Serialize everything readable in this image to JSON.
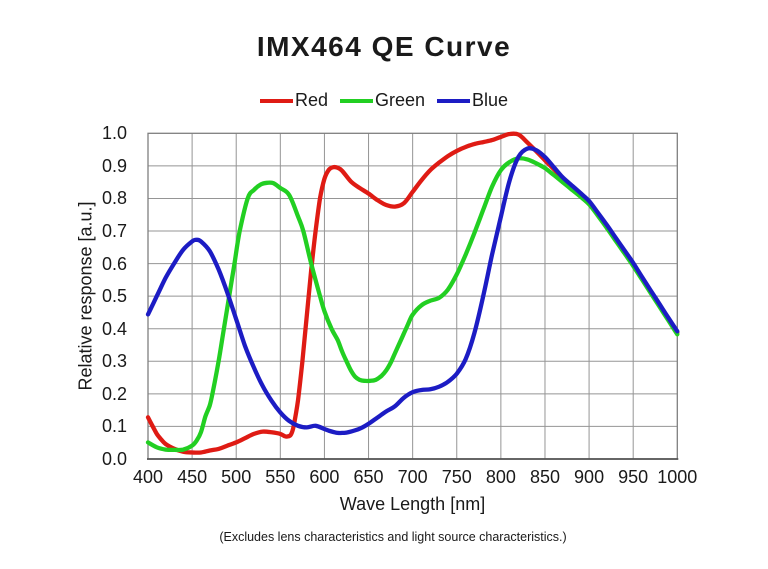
{
  "title": "IMX464 QE Curve",
  "x_axis_title": "Wave Length [nm]",
  "y_axis_title": "Relative response [a.u.]",
  "footnote": "(Excludes lens characteristics and light source characteristics.)",
  "colors": {
    "red": "#df1b14",
    "green": "#22cf22",
    "blue": "#1c1cc4",
    "grid": "#959595",
    "frame": "#7f7f7f",
    "axis": "#555555",
    "text": "#1a1a1a"
  },
  "chart_data": {
    "type": "line",
    "title": "IMX464 QE Curve",
    "xlabel": "Wave Length [nm]",
    "ylabel": "Relative response [a.u.]",
    "xlim": [
      400,
      1000
    ],
    "ylim": [
      0.0,
      1.0
    ],
    "x_ticks": [
      400,
      450,
      500,
      550,
      600,
      650,
      700,
      750,
      800,
      850,
      900,
      950,
      1000
    ],
    "y_ticks": [
      0.0,
      0.1,
      0.2,
      0.3,
      0.4,
      0.5,
      0.6,
      0.7,
      0.8,
      0.9,
      1.0
    ],
    "grid": true,
    "legend_position": "top",
    "series": [
      {
        "name": "Red",
        "color": "#df1b14",
        "points": [
          [
            400,
            0.128
          ],
          [
            405,
            0.102
          ],
          [
            410,
            0.077
          ],
          [
            415,
            0.06
          ],
          [
            420,
            0.046
          ],
          [
            430,
            0.031
          ],
          [
            440,
            0.022
          ],
          [
            450,
            0.02
          ],
          [
            460,
            0.02
          ],
          [
            470,
            0.026
          ],
          [
            480,
            0.031
          ],
          [
            490,
            0.041
          ],
          [
            500,
            0.051
          ],
          [
            510,
            0.064
          ],
          [
            520,
            0.077
          ],
          [
            530,
            0.084
          ],
          [
            540,
            0.082
          ],
          [
            550,
            0.077
          ],
          [
            555,
            0.07
          ],
          [
            558,
            0.069
          ],
          [
            562,
            0.075
          ],
          [
            565,
            0.1
          ],
          [
            570,
            0.18
          ],
          [
            575,
            0.3
          ],
          [
            580,
            0.44
          ],
          [
            585,
            0.58
          ],
          [
            590,
            0.7
          ],
          [
            595,
            0.8
          ],
          [
            600,
            0.86
          ],
          [
            605,
            0.888
          ],
          [
            610,
            0.896
          ],
          [
            615,
            0.894
          ],
          [
            620,
            0.885
          ],
          [
            630,
            0.852
          ],
          [
            640,
            0.832
          ],
          [
            650,
            0.815
          ],
          [
            660,
            0.795
          ],
          [
            670,
            0.78
          ],
          [
            680,
            0.775
          ],
          [
            690,
            0.785
          ],
          [
            700,
            0.82
          ],
          [
            710,
            0.856
          ],
          [
            720,
            0.887
          ],
          [
            730,
            0.91
          ],
          [
            740,
            0.93
          ],
          [
            750,
            0.946
          ],
          [
            760,
            0.958
          ],
          [
            770,
            0.967
          ],
          [
            780,
            0.973
          ],
          [
            790,
            0.979
          ],
          [
            800,
            0.989
          ],
          [
            810,
            0.998
          ],
          [
            820,
            0.996
          ],
          [
            830,
            0.972
          ],
          [
            840,
            0.945
          ],
          [
            850,
            0.917
          ],
          [
            860,
            0.89
          ],
          [
            870,
            0.862
          ],
          [
            880,
            0.838
          ],
          [
            890,
            0.814
          ],
          [
            900,
            0.788
          ],
          [
            910,
            0.752
          ],
          [
            920,
            0.715
          ],
          [
            930,
            0.676
          ],
          [
            940,
            0.637
          ],
          [
            950,
            0.598
          ],
          [
            960,
            0.556
          ],
          [
            970,
            0.514
          ],
          [
            980,
            0.472
          ],
          [
            990,
            0.43
          ],
          [
            1000,
            0.388
          ]
        ]
      },
      {
        "name": "Green",
        "color": "#22cf22",
        "points": [
          [
            400,
            0.051
          ],
          [
            410,
            0.036
          ],
          [
            420,
            0.029
          ],
          [
            430,
            0.028
          ],
          [
            440,
            0.029
          ],
          [
            450,
            0.041
          ],
          [
            455,
            0.056
          ],
          [
            460,
            0.082
          ],
          [
            465,
            0.13
          ],
          [
            470,
            0.165
          ],
          [
            473,
            0.2
          ],
          [
            480,
            0.3
          ],
          [
            486,
            0.4
          ],
          [
            492,
            0.5
          ],
          [
            498,
            0.6
          ],
          [
            504,
            0.7
          ],
          [
            513,
            0.8
          ],
          [
            520,
            0.826
          ],
          [
            528,
            0.843
          ],
          [
            535,
            0.848
          ],
          [
            542,
            0.847
          ],
          [
            550,
            0.832
          ],
          [
            560,
            0.811
          ],
          [
            570,
            0.745
          ],
          [
            576,
            0.7
          ],
          [
            585,
            0.6
          ],
          [
            595,
            0.5
          ],
          [
            600,
            0.454
          ],
          [
            608,
            0.4
          ],
          [
            615,
            0.365
          ],
          [
            620,
            0.33
          ],
          [
            625,
            0.3
          ],
          [
            630,
            0.272
          ],
          [
            635,
            0.252
          ],
          [
            640,
            0.243
          ],
          [
            645,
            0.24
          ],
          [
            652,
            0.24
          ],
          [
            658,
            0.243
          ],
          [
            665,
            0.256
          ],
          [
            670,
            0.272
          ],
          [
            675,
            0.295
          ],
          [
            680,
            0.325
          ],
          [
            685,
            0.355
          ],
          [
            690,
            0.385
          ],
          [
            695,
            0.415
          ],
          [
            700,
            0.443
          ],
          [
            710,
            0.472
          ],
          [
            720,
            0.486
          ],
          [
            730,
            0.495
          ],
          [
            740,
            0.52
          ],
          [
            750,
            0.567
          ],
          [
            760,
            0.627
          ],
          [
            770,
            0.694
          ],
          [
            780,
            0.765
          ],
          [
            790,
            0.836
          ],
          [
            800,
            0.887
          ],
          [
            810,
            0.912
          ],
          [
            820,
            0.923
          ],
          [
            830,
            0.92
          ],
          [
            840,
            0.908
          ],
          [
            850,
            0.893
          ],
          [
            860,
            0.872
          ],
          [
            870,
            0.85
          ],
          [
            880,
            0.828
          ],
          [
            890,
            0.806
          ],
          [
            900,
            0.782
          ],
          [
            910,
            0.747
          ],
          [
            920,
            0.71
          ],
          [
            930,
            0.671
          ],
          [
            940,
            0.632
          ],
          [
            950,
            0.593
          ],
          [
            960,
            0.551
          ],
          [
            970,
            0.509
          ],
          [
            980,
            0.467
          ],
          [
            990,
            0.425
          ],
          [
            1000,
            0.383
          ]
        ]
      },
      {
        "name": "Blue",
        "color": "#1c1cc4",
        "points": [
          [
            400,
            0.444
          ],
          [
            410,
            0.5
          ],
          [
            420,
            0.556
          ],
          [
            430,
            0.602
          ],
          [
            440,
            0.643
          ],
          [
            450,
            0.668
          ],
          [
            455,
            0.673
          ],
          [
            460,
            0.668
          ],
          [
            470,
            0.638
          ],
          [
            480,
            0.582
          ],
          [
            490,
            0.51
          ],
          [
            500,
            0.429
          ],
          [
            510,
            0.347
          ],
          [
            520,
            0.281
          ],
          [
            530,
            0.224
          ],
          [
            540,
            0.179
          ],
          [
            550,
            0.143
          ],
          [
            560,
            0.117
          ],
          [
            570,
            0.102
          ],
          [
            580,
            0.097
          ],
          [
            590,
            0.102
          ],
          [
            600,
            0.092
          ],
          [
            605,
            0.087
          ],
          [
            610,
            0.083
          ],
          [
            615,
            0.08
          ],
          [
            620,
            0.08
          ],
          [
            625,
            0.081
          ],
          [
            630,
            0.084
          ],
          [
            640,
            0.093
          ],
          [
            650,
            0.108
          ],
          [
            660,
            0.127
          ],
          [
            670,
            0.146
          ],
          [
            680,
            0.162
          ],
          [
            690,
            0.188
          ],
          [
            700,
            0.205
          ],
          [
            710,
            0.212
          ],
          [
            720,
            0.214
          ],
          [
            730,
            0.222
          ],
          [
            740,
            0.237
          ],
          [
            750,
            0.262
          ],
          [
            760,
            0.306
          ],
          [
            770,
            0.387
          ],
          [
            780,
            0.5
          ],
          [
            790,
            0.627
          ],
          [
            800,
            0.744
          ],
          [
            810,
            0.856
          ],
          [
            820,
            0.928
          ],
          [
            830,
            0.953
          ],
          [
            840,
            0.948
          ],
          [
            850,
            0.927
          ],
          [
            860,
            0.896
          ],
          [
            870,
            0.865
          ],
          [
            880,
            0.841
          ],
          [
            890,
            0.817
          ],
          [
            900,
            0.792
          ],
          [
            910,
            0.756
          ],
          [
            920,
            0.719
          ],
          [
            930,
            0.68
          ],
          [
            940,
            0.641
          ],
          [
            950,
            0.602
          ],
          [
            960,
            0.559
          ],
          [
            970,
            0.517
          ],
          [
            980,
            0.475
          ],
          [
            990,
            0.433
          ],
          [
            1000,
            0.392
          ]
        ]
      }
    ]
  },
  "legend": [
    {
      "label": "Red",
      "color": "#df1b14"
    },
    {
      "label": "Green",
      "color": "#22cf22"
    },
    {
      "label": "Blue",
      "color": "#1c1cc4"
    }
  ]
}
